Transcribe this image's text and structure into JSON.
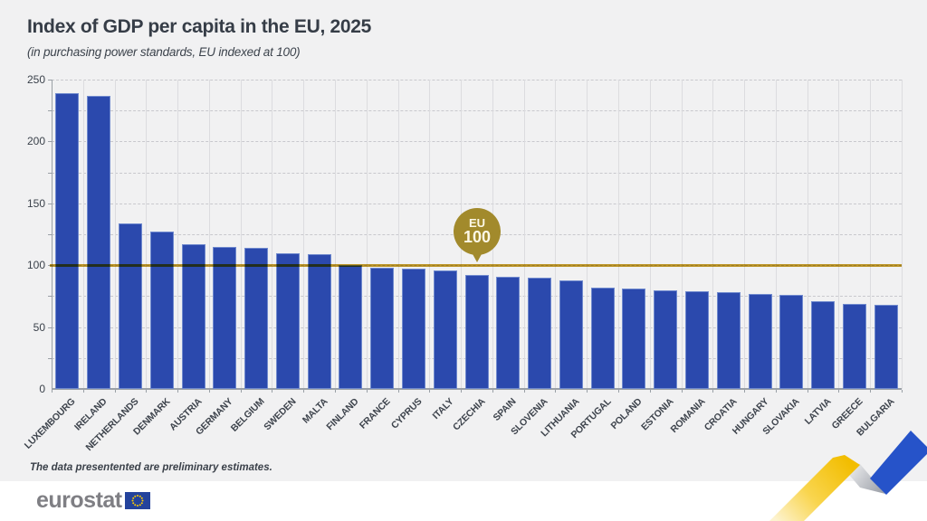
{
  "page": {
    "title": "Index of GDP per capita in the EU, 2025",
    "subtitle": "(in purchasing power standards, EU indexed at 100)",
    "footnote": "The data presentented are preliminary estimates.",
    "logo_text": "eurostat"
  },
  "badge": {
    "line1": "EU",
    "line2": "100"
  },
  "chart_data": {
    "type": "bar",
    "title": "Index of GDP per capita in the EU, 2025",
    "subtitle": "(in purchasing power standards, EU indexed at 100)",
    "categories": [
      "LUXEMBOURG",
      "IRELAND",
      "NETHERLANDS",
      "DENMARK",
      "AUSTRIA",
      "GERMANY",
      "BELGIUM",
      "SWEDEN",
      "MALTA",
      "FINLAND",
      "FRANCE",
      "CYPRUS",
      "ITALY",
      "CZECHIA",
      "SPAIN",
      "SLOVENIA",
      "LITHUANIA",
      "PORTUGAL",
      "POLAND",
      "ESTONIA",
      "ROMANIA",
      "CROATIA",
      "HUNGARY",
      "SLOVAKIA",
      "LATVIA",
      "GREECE",
      "BULGARIA"
    ],
    "values": [
      239,
      237,
      134,
      127,
      117,
      115,
      114,
      110,
      109,
      100,
      98,
      97,
      96,
      92,
      91,
      90,
      88,
      82,
      81,
      80,
      79,
      78,
      77,
      76,
      71,
      69,
      68
    ],
    "xlabel": "",
    "ylabel": "",
    "ylim": [
      0,
      250
    ],
    "yticks": [
      0,
      50,
      100,
      150,
      200,
      250
    ],
    "minor_grid_step": 25,
    "grid": "on",
    "legend": "none",
    "reference_line": {
      "value": 100,
      "label": "EU 100"
    }
  },
  "colors": {
    "background": "#f1f1f2",
    "bar": "#2b49ad",
    "reference_gold": "#c79e2b",
    "badge_gold": "#a28a2c",
    "flag_blue": "#24439c",
    "star_yellow": "#ffcc00",
    "ribbon_yellow": "#f5c000",
    "ribbon_blue": "#2653c9",
    "ribbon_gray": "#a9adb3"
  }
}
